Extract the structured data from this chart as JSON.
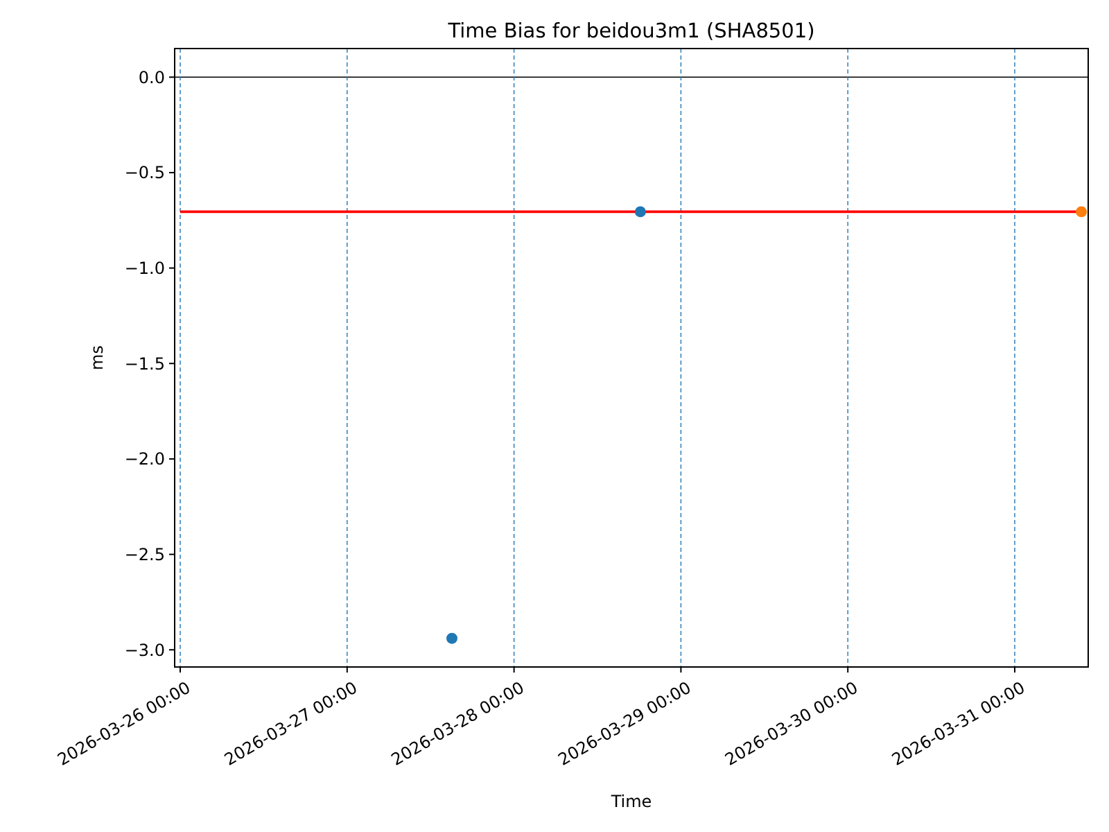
{
  "chart_data": {
    "type": "scatter",
    "title": "Time Bias for beidou3m1 (SHA8501)",
    "xlabel": "Time",
    "ylabel": "ms",
    "xlim": [
      "2026-03-25T23:12",
      "2026-03-31T10:34"
    ],
    "xticks": [
      {
        "value": "2026-03-26",
        "label": "2026-03-26 00:00"
      },
      {
        "value": "2026-03-27",
        "label": "2026-03-27 00:00"
      },
      {
        "value": "2026-03-28",
        "label": "2026-03-28 00:00"
      },
      {
        "value": "2026-03-29",
        "label": "2026-03-29 00:00"
      },
      {
        "value": "2026-03-30",
        "label": "2026-03-30 00:00"
      },
      {
        "value": "2026-03-31",
        "label": "2026-03-31 00:00"
      }
    ],
    "ylim": [
      -3.09,
      0.15
    ],
    "yticks": [
      {
        "value": 0,
        "label": "0.0"
      },
      {
        "value": -0.5,
        "label": "−0.5"
      },
      {
        "value": -1,
        "label": "−1.0"
      },
      {
        "value": -1.5,
        "label": "−1.5"
      },
      {
        "value": -2,
        "label": "−2.0"
      },
      {
        "value": -2.5,
        "label": "−2.5"
      },
      {
        "value": -3,
        "label": "−3.0"
      }
    ],
    "marker": "circle",
    "series": [
      {
        "type": "line",
        "marker": "none",
        "color": "#ff0000",
        "x": [
          "2026-03-26T00:00",
          "2026-03-31T09:35"
        ],
        "values": [
          -0.705,
          -0.705
        ]
      },
      {
        "color": "#1f77b4",
        "x": [
          "2026-03-27T15:04",
          "2026-03-28T18:10"
        ],
        "values": [
          -2.94,
          -0.705
        ]
      },
      {
        "color": "#ff7f0e",
        "x": [
          "2026-03-31T09:35"
        ],
        "values": [
          -0.705
        ]
      }
    ],
    "ref_lines": [
      {
        "axis": "y",
        "value": 0,
        "color": "#000000",
        "line_style": "solid"
      },
      {
        "axis": "x",
        "value": "2026-03-26",
        "color": "#1f77b4",
        "line_style": "dashed"
      },
      {
        "axis": "x",
        "value": "2026-03-27",
        "color": "#1f77b4",
        "line_style": "dashed"
      },
      {
        "axis": "x",
        "value": "2026-03-28",
        "color": "#1f77b4",
        "line_style": "dashed"
      },
      {
        "axis": "x",
        "value": "2026-03-29",
        "color": "#1f77b4",
        "line_style": "dashed"
      },
      {
        "axis": "x",
        "value": "2026-03-30",
        "color": "#1f77b4",
        "line_style": "dashed"
      },
      {
        "axis": "x",
        "value": "2026-03-31",
        "color": "#1f77b4",
        "line_style": "dashed"
      }
    ]
  }
}
